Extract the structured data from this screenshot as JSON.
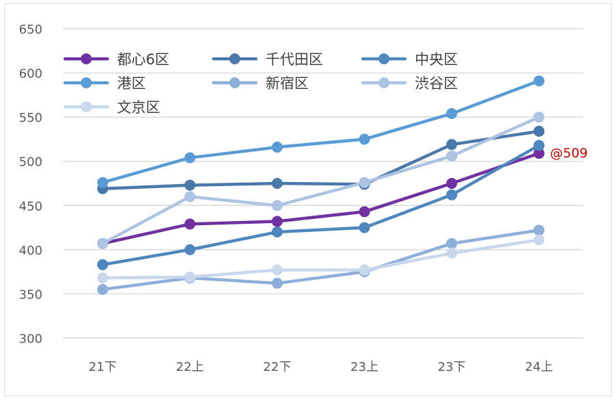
{
  "chart_data": {
    "type": "line",
    "categories": [
      "21下",
      "22上",
      "22下",
      "23上",
      "23下",
      "24上"
    ],
    "ylim": [
      300,
      650
    ],
    "yticks": [
      300,
      350,
      400,
      450,
      500,
      550,
      600,
      650
    ],
    "grid": true,
    "legend_position": "top-left",
    "series": [
      {
        "name": "都心6区",
        "color": "#7030a0",
        "values": [
          407,
          429,
          432,
          443,
          475,
          509
        ]
      },
      {
        "name": "千代田区",
        "color": "#4a78a8",
        "values": [
          469,
          473,
          475,
          474,
          519,
          534
        ]
      },
      {
        "name": "中央区",
        "color": "#4f86bd",
        "values": [
          383,
          400,
          420,
          425,
          462,
          518
        ]
      },
      {
        "name": "港区",
        "color": "#5b9bd5",
        "values": [
          476,
          504,
          516,
          525,
          554,
          591
        ]
      },
      {
        "name": "新宿区",
        "color": "#8caed9",
        "values": [
          355,
          368,
          362,
          375,
          407,
          422
        ]
      },
      {
        "name": "渋谷区",
        "color": "#adc3e2",
        "values": [
          407,
          460,
          450,
          476,
          506,
          550
        ]
      },
      {
        "name": "文京区",
        "color": "#c9d7ec",
        "values": [
          368,
          369,
          377,
          377,
          396,
          411
        ]
      }
    ],
    "annotations": [
      {
        "text": "@509",
        "series": "都心6区",
        "category": "24上",
        "color": "#c00000"
      }
    ]
  }
}
